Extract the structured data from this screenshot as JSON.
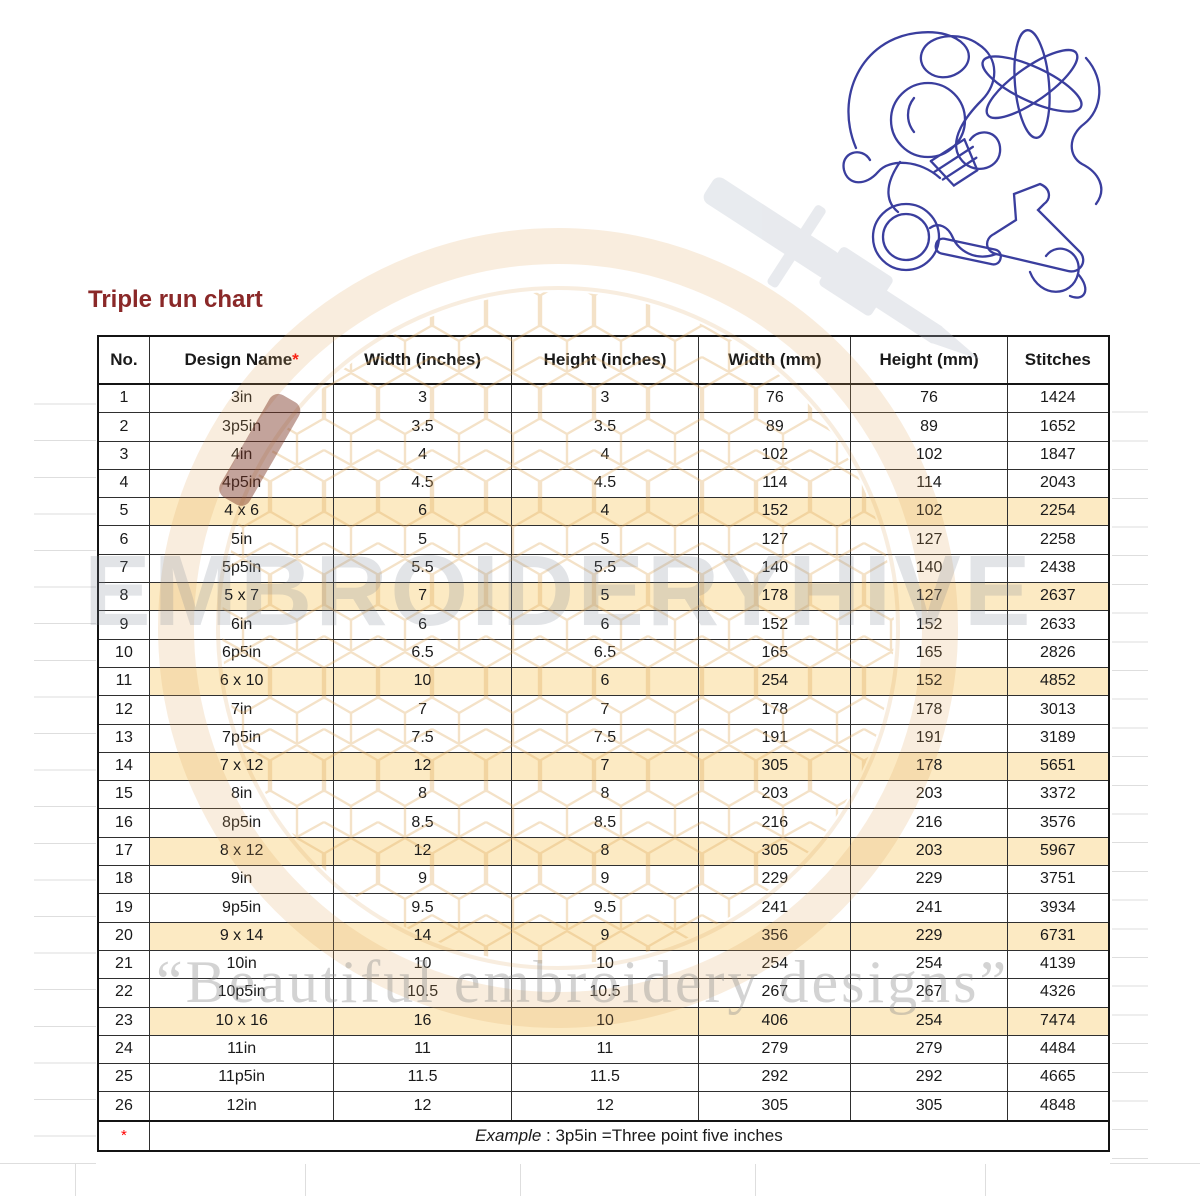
{
  "title": "Triple run chart",
  "table": {
    "columns": [
      "No.",
      "Design Name",
      "Width (inches)",
      "Height (inches)",
      "Width (mm)",
      "Height (mm)",
      "Stitches"
    ],
    "design_name_mark": "*",
    "rows": [
      {
        "no": "1",
        "name": "3in",
        "w_in": "3",
        "h_in": "3",
        "w_mm": "76",
        "h_mm": "76",
        "stitches": "1424",
        "hoop_row": false
      },
      {
        "no": "2",
        "name": "3p5in",
        "w_in": "3.5",
        "h_in": "3.5",
        "w_mm": "89",
        "h_mm": "89",
        "stitches": "1652",
        "hoop_row": false
      },
      {
        "no": "3",
        "name": "4in",
        "w_in": "4",
        "h_in": "4",
        "w_mm": "102",
        "h_mm": "102",
        "stitches": "1847",
        "hoop_row": false
      },
      {
        "no": "4",
        "name": "4p5in",
        "w_in": "4.5",
        "h_in": "4.5",
        "w_mm": "114",
        "h_mm": "114",
        "stitches": "2043",
        "hoop_row": false
      },
      {
        "no": "5",
        "name": "4 x 6",
        "w_in": "6",
        "h_in": "4",
        "w_mm": "152",
        "h_mm": "102",
        "stitches": "2254",
        "hoop_row": true
      },
      {
        "no": "6",
        "name": "5in",
        "w_in": "5",
        "h_in": "5",
        "w_mm": "127",
        "h_mm": "127",
        "stitches": "2258",
        "hoop_row": false
      },
      {
        "no": "7",
        "name": "5p5in",
        "w_in": "5.5",
        "h_in": "5.5",
        "w_mm": "140",
        "h_mm": "140",
        "stitches": "2438",
        "hoop_row": false
      },
      {
        "no": "8",
        "name": "5 x 7",
        "w_in": "7",
        "h_in": "5",
        "w_mm": "178",
        "h_mm": "127",
        "stitches": "2637",
        "hoop_row": true
      },
      {
        "no": "9",
        "name": "6in",
        "w_in": "6",
        "h_in": "6",
        "w_mm": "152",
        "h_mm": "152",
        "stitches": "2633",
        "hoop_row": false
      },
      {
        "no": "10",
        "name": "6p5in",
        "w_in": "6.5",
        "h_in": "6.5",
        "w_mm": "165",
        "h_mm": "165",
        "stitches": "2826",
        "hoop_row": false
      },
      {
        "no": "11",
        "name": "6 x 10",
        "w_in": "10",
        "h_in": "6",
        "w_mm": "254",
        "h_mm": "152",
        "stitches": "4852",
        "hoop_row": true
      },
      {
        "no": "12",
        "name": "7in",
        "w_in": "7",
        "h_in": "7",
        "w_mm": "178",
        "h_mm": "178",
        "stitches": "3013",
        "hoop_row": false
      },
      {
        "no": "13",
        "name": "7p5in",
        "w_in": "7.5",
        "h_in": "7.5",
        "w_mm": "191",
        "h_mm": "191",
        "stitches": "3189",
        "hoop_row": false
      },
      {
        "no": "14",
        "name": "7 x 12",
        "w_in": "12",
        "h_in": "7",
        "w_mm": "305",
        "h_mm": "178",
        "stitches": "5651",
        "hoop_row": true
      },
      {
        "no": "15",
        "name": "8in",
        "w_in": "8",
        "h_in": "8",
        "w_mm": "203",
        "h_mm": "203",
        "stitches": "3372",
        "hoop_row": false
      },
      {
        "no": "16",
        "name": "8p5in",
        "w_in": "8.5",
        "h_in": "8.5",
        "w_mm": "216",
        "h_mm": "216",
        "stitches": "3576",
        "hoop_row": false
      },
      {
        "no": "17",
        "name": "8 x 12",
        "w_in": "12",
        "h_in": "8",
        "w_mm": "305",
        "h_mm": "203",
        "stitches": "5967",
        "hoop_row": true
      },
      {
        "no": "18",
        "name": "9in",
        "w_in": "9",
        "h_in": "9",
        "w_mm": "229",
        "h_mm": "229",
        "stitches": "3751",
        "hoop_row": false
      },
      {
        "no": "19",
        "name": "9p5in",
        "w_in": "9.5",
        "h_in": "9.5",
        "w_mm": "241",
        "h_mm": "241",
        "stitches": "3934",
        "hoop_row": false
      },
      {
        "no": "20",
        "name": "9 x 14",
        "w_in": "14",
        "h_in": "9",
        "w_mm": "356",
        "h_mm": "229",
        "stitches": "6731",
        "hoop_row": true
      },
      {
        "no": "21",
        "name": "10in",
        "w_in": "10",
        "h_in": "10",
        "w_mm": "254",
        "h_mm": "254",
        "stitches": "4139",
        "hoop_row": false
      },
      {
        "no": "22",
        "name": "10p5in",
        "w_in": "10.5",
        "h_in": "10.5",
        "w_mm": "267",
        "h_mm": "267",
        "stitches": "4326",
        "hoop_row": false
      },
      {
        "no": "23",
        "name": "10 x 16",
        "w_in": "16",
        "h_in": "10",
        "w_mm": "406",
        "h_mm": "254",
        "stitches": "7474",
        "hoop_row": true
      },
      {
        "no": "24",
        "name": "11in",
        "w_in": "11",
        "h_in": "11",
        "w_mm": "279",
        "h_mm": "279",
        "stitches": "4484",
        "hoop_row": false
      },
      {
        "no": "25",
        "name": "11p5in",
        "w_in": "11.5",
        "h_in": "11.5",
        "w_mm": "292",
        "h_mm": "292",
        "stitches": "4665",
        "hoop_row": false
      },
      {
        "no": "26",
        "name": "12in",
        "w_in": "12",
        "h_in": "12",
        "w_mm": "305",
        "h_mm": "305",
        "stitches": "4848",
        "hoop_row": false
      }
    ],
    "footnote": {
      "marker": "*",
      "word_italic": "Example",
      "rest": " : 3p5in =Three point five inches"
    }
  },
  "watermarks": {
    "brand": "EMBROIDERYHIVE",
    "tagline": "“Beautiful embroidery designs”"
  },
  "colors": {
    "title": "#8a2828",
    "red_mark": "#ff0000",
    "green_cell": "#e2efda",
    "blue_cell": "#ddebf7",
    "tan_cell": "#fceac3",
    "doodle_blue": "#3a3e9e",
    "hoop_orange": "#e1a35b"
  }
}
